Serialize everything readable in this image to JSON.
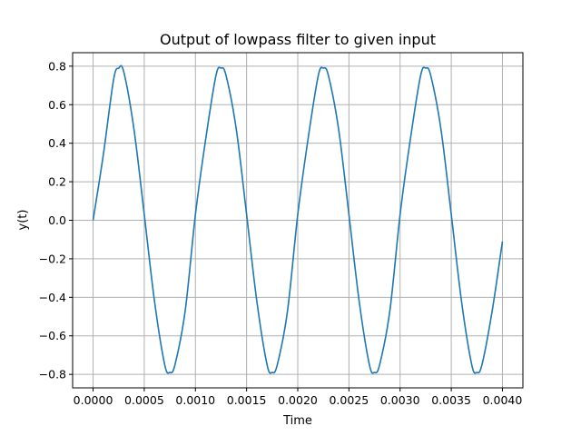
{
  "chart_data": {
    "type": "line",
    "title": "Output of lowpass filter to given input",
    "xlabel": "Time",
    "ylabel": "y(t)",
    "xlim": [
      -0.0002,
      0.0042
    ],
    "ylim": [
      -0.87,
      0.87
    ],
    "grid": true,
    "series": [
      {
        "color": "#1f77b4",
        "x": [
          0.0,
          0.0001,
          0.0002,
          0.00025,
          0.0003,
          0.0004,
          0.0005,
          0.0006,
          0.0007,
          0.00075,
          0.0008,
          0.0009,
          0.001,
          0.0011,
          0.0012,
          0.00125,
          0.0013,
          0.0014,
          0.0015,
          0.0016,
          0.0017,
          0.00175,
          0.0018,
          0.0019,
          0.002,
          0.0021,
          0.0022,
          0.00225,
          0.0023,
          0.0024,
          0.0025,
          0.0026,
          0.0027,
          0.00275,
          0.0028,
          0.0029,
          0.003,
          0.0031,
          0.0032,
          0.00325,
          0.0033,
          0.0034,
          0.0035,
          0.0036,
          0.0037,
          0.00375,
          0.0038,
          0.0039,
          0.004
        ],
        "y": [
          0.0,
          0.34,
          0.73,
          0.79,
          0.77,
          0.47,
          0.03,
          -0.42,
          -0.75,
          -0.79,
          -0.75,
          -0.47,
          0.03,
          0.42,
          0.75,
          0.79,
          0.75,
          0.47,
          0.03,
          -0.42,
          -0.75,
          -0.79,
          -0.75,
          -0.47,
          0.03,
          0.42,
          0.75,
          0.79,
          0.75,
          0.47,
          0.03,
          -0.42,
          -0.75,
          -0.79,
          -0.75,
          -0.47,
          0.03,
          0.42,
          0.75,
          0.79,
          0.75,
          0.47,
          0.03,
          -0.42,
          -0.75,
          -0.79,
          -0.75,
          -0.47,
          -0.11
        ]
      }
    ],
    "xticks": [
      0.0,
      0.0005,
      0.001,
      0.0015,
      0.002,
      0.0025,
      0.003,
      0.0035,
      0.004
    ],
    "xtick_labels": [
      "0.0000",
      "0.0005",
      "0.0010",
      "0.0015",
      "0.0020",
      "0.0025",
      "0.0030",
      "0.0035",
      "0.0040"
    ],
    "yticks": [
      0.8,
      0.6,
      0.4,
      0.2,
      0.0,
      -0.2,
      -0.4,
      -0.6,
      -0.8
    ],
    "ytick_labels": [
      "0.8",
      "0.6",
      "0.4",
      "0.2",
      "0.0",
      "−0.2",
      "−0.4",
      "−0.6",
      "−0.8"
    ]
  }
}
